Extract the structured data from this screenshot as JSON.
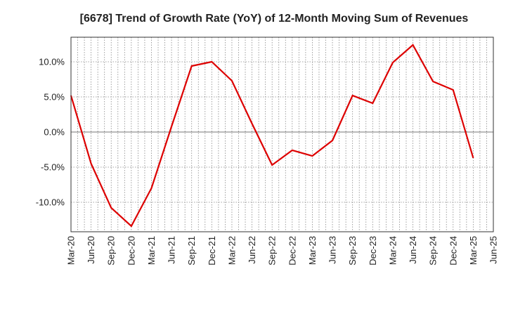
{
  "chart_data": {
    "type": "line",
    "title": "[6678]  Trend of Growth Rate (YoY) of 12-Month Moving Sum of Revenues",
    "xlabel": "",
    "ylabel": "",
    "x_ticks": [
      "Mar-20",
      "Jun-20",
      "Sep-20",
      "Dec-20",
      "Mar-21",
      "Jun-21",
      "Sep-21",
      "Dec-21",
      "Mar-22",
      "Jun-22",
      "Sep-22",
      "Dec-22",
      "Mar-23",
      "Jun-23",
      "Sep-23",
      "Dec-23",
      "Mar-24",
      "Jun-24",
      "Sep-24",
      "Dec-24",
      "Mar-25",
      "Jun-25"
    ],
    "y_ticks": [
      10,
      5,
      0,
      -5,
      -10
    ],
    "y_tick_labels": [
      "10.0%",
      "5.0%",
      "0.0%",
      "-5.0%",
      "-10.0%"
    ],
    "ylim": [
      -14.2,
      13.5
    ],
    "grid": true,
    "zero_line": true,
    "series": [
      {
        "color": "#dd0000",
        "x": [
          "Mar-20",
          "Jun-20",
          "Sep-20",
          "Dec-20",
          "Mar-21",
          "Jun-21",
          "Sep-21",
          "Dec-21",
          "Mar-22",
          "Jun-22",
          "Sep-22",
          "Dec-22",
          "Mar-23",
          "Jun-23",
          "Sep-23",
          "Dec-23",
          "Mar-24",
          "Jun-24",
          "Sep-24",
          "Dec-24",
          "Mar-25"
        ],
        "values": [
          5.2,
          -4.5,
          -10.8,
          -13.4,
          -8.0,
          0.8,
          9.4,
          10.0,
          7.3,
          1.2,
          -4.7,
          -2.6,
          -3.4,
          -1.2,
          5.2,
          4.1,
          9.9,
          12.4,
          7.2,
          6.0,
          -3.7
        ]
      }
    ]
  }
}
